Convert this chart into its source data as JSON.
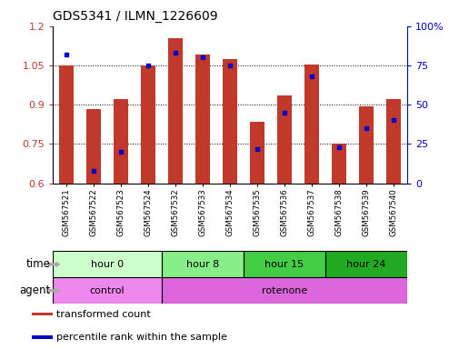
{
  "title": "GDS5341 / ILMN_1226609",
  "samples": [
    "GSM567521",
    "GSM567522",
    "GSM567523",
    "GSM567524",
    "GSM567532",
    "GSM567533",
    "GSM567534",
    "GSM567535",
    "GSM567536",
    "GSM567537",
    "GSM567538",
    "GSM567539",
    "GSM567540"
  ],
  "bar_values": [
    1.05,
    0.885,
    0.92,
    1.05,
    1.155,
    1.09,
    1.075,
    0.835,
    0.935,
    1.055,
    0.75,
    0.895,
    0.92
  ],
  "percentile_values": [
    82,
    8,
    20,
    75,
    83,
    80,
    75,
    22,
    45,
    68,
    23,
    35,
    40
  ],
  "bar_color": "#C0392B",
  "dot_color": "#0000CC",
  "ylim_left": [
    0.6,
    1.2
  ],
  "ylim_right": [
    0,
    100
  ],
  "yticks_left": [
    0.6,
    0.75,
    0.9,
    1.05,
    1.2
  ],
  "yticks_right": [
    0,
    25,
    50,
    75,
    100
  ],
  "ytick_labels_left": [
    "0.6",
    "0.75",
    "0.9",
    "1.05",
    "1.2"
  ],
  "ytick_labels_right": [
    "0",
    "25",
    "50",
    "75",
    "100%"
  ],
  "grid_color": "black",
  "time_groups": [
    {
      "label": "hour 0",
      "start": 0,
      "end": 3,
      "color": "#CCFFCC"
    },
    {
      "label": "hour 8",
      "start": 4,
      "end": 6,
      "color": "#88EE88"
    },
    {
      "label": "hour 15",
      "start": 7,
      "end": 9,
      "color": "#44CC44"
    },
    {
      "label": "hour 24",
      "start": 10,
      "end": 12,
      "color": "#22AA22"
    }
  ],
  "agent_groups": [
    {
      "label": "control",
      "start": 0,
      "end": 3,
      "color": "#EE88EE"
    },
    {
      "label": "rotenone",
      "start": 4,
      "end": 12,
      "color": "#DD66DD"
    }
  ],
  "legend_items": [
    {
      "color": "#C0392B",
      "label": "transformed count"
    },
    {
      "color": "#0000CC",
      "label": "percentile rank within the sample"
    }
  ],
  "time_label": "time",
  "agent_label": "agent",
  "bar_width": 0.55
}
